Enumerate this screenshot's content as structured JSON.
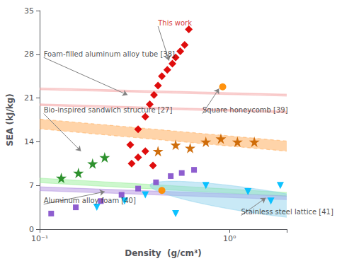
{
  "chart_data": {
    "type": "scatter",
    "xlabel": "Density  (g/cm³)",
    "ylabel": "SEA (kJ/kg)",
    "log": "x",
    "grid": false,
    "xlim": [
      0.1,
      2.0
    ],
    "ylim": [
      0,
      35
    ],
    "xticks": [
      {
        "value": 0.1,
        "label": "10⁻¹"
      },
      {
        "value": 1,
        "label": "10⁰"
      }
    ],
    "yticks": [
      0,
      7,
      14,
      21,
      28,
      35
    ],
    "series": [
      {
        "color": "#dd0000",
        "marker": "diamond",
        "x": [
          0.3,
          0.33,
          0.36,
          0.38,
          0.4,
          0.42,
          0.44,
          0.47,
          0.5,
          0.52,
          0.55,
          0.58,
          0.61
        ],
        "y": [
          13.5,
          16.0,
          18.0,
          20.0,
          21.5,
          23.0,
          24.5,
          25.5,
          26.5,
          27.5,
          28.5,
          29.5,
          32.0
        ]
      },
      {
        "color": "#dd0000",
        "marker": "diamond",
        "x": [
          0.305,
          0.33,
          0.36,
          0.395
        ],
        "y": [
          10.5,
          11.5,
          12.5,
          10.2
        ]
      },
      {
        "color": "#228B22",
        "marker": "star",
        "x": [
          0.13,
          0.16,
          0.19,
          0.22
        ],
        "y": [
          8.2,
          9.0,
          10.5,
          11.5
        ]
      },
      {
        "color": "#cc6600",
        "marker": "star",
        "x": [
          0.42,
          0.52,
          0.62,
          0.75,
          0.9,
          1.1,
          1.35
        ],
        "y": [
          12.5,
          13.5,
          13.0,
          14.0,
          14.5,
          14.0,
          14.0
        ]
      },
      {
        "color": "#8855cc",
        "marker": "square",
        "x": [
          0.115,
          0.155,
          0.21,
          0.27,
          0.33,
          0.41,
          0.49,
          0.56,
          0.65
        ],
        "y": [
          2.5,
          3.5,
          4.5,
          5.5,
          6.5,
          7.5,
          8.5,
          9.0,
          9.5
        ]
      },
      {
        "color": "#00BFFF",
        "marker": "triangle_down",
        "x": [
          0.2,
          0.28,
          0.36,
          0.52,
          0.75,
          1.25,
          1.65,
          1.85
        ],
        "y": [
          3.5,
          4.5,
          5.5,
          2.5,
          7.0,
          6.0,
          4.5,
          7.0
        ]
      },
      {
        "color": "#FF8C00",
        "marker": "circle",
        "x": [
          0.44,
          0.92
        ],
        "y": [
          6.2,
          22.8
        ]
      }
    ],
    "regions": [
      {
        "cx_log": -0.385,
        "cy": 22.0,
        "rx_log": 0.115,
        "ry": 10.5,
        "angle_deg": 52,
        "color": "#f5a0a0",
        "line_style": "solid"
      },
      {
        "cx_log": -0.52,
        "cy": 19.5,
        "rx_log": 0.1,
        "ry": 9.0,
        "angle_deg": 48,
        "color": "#f5a0a0",
        "line_style": "solid"
      },
      {
        "cx_log": -0.82,
        "cy": 7.5,
        "rx_log": 0.18,
        "ry": 3.8,
        "angle_deg": 30,
        "color": "#90EE90",
        "line_style": "solid"
      },
      {
        "cx_log": -0.14,
        "cy": 14.5,
        "rx_log": 0.28,
        "ry": 9.5,
        "angle_deg": 20,
        "color": "#FFA040",
        "line_style": "dashed"
      },
      {
        "cx_log": -0.57,
        "cy": 6.0,
        "rx_log": 0.2,
        "ry": 5.5,
        "angle_deg": 42,
        "color": "#aa88dd",
        "line_style": "solid"
      },
      {
        "cx_log": 0.14,
        "cy": 4.5,
        "rx_log": 0.34,
        "ry": 3.2,
        "angle_deg": 8,
        "color": "#87CEEB",
        "line_style": "solid"
      }
    ],
    "annotations": [
      {
        "text": "This work",
        "tx": 0.42,
        "ty": 32.5,
        "ax": 0.48,
        "ay": 27.0,
        "color": "#cc0000",
        "arrow_color": "gray"
      },
      {
        "text": "Foam-filled aluminum alloy tube [38]",
        "tx": 0.105,
        "ty": 27.5,
        "ax": 0.29,
        "ay": 21.5,
        "color": "#222222",
        "arrow_color": "gray"
      },
      {
        "text": "Bio-inspired sandwich structure [27]",
        "tx": 0.105,
        "ty": 18.5,
        "ax": 0.165,
        "ay": 12.5,
        "color": "#222222",
        "arrow_color": "gray"
      },
      {
        "text": "Square honeycomb [39]",
        "tx": 0.72,
        "ty": 18.5,
        "ax": 0.88,
        "ay": 22.5,
        "color": "#222222",
        "arrow_color": "gray"
      },
      {
        "text": "Aluminum alloy foam [40]",
        "tx": 0.105,
        "ty": 4.0,
        "ax": 0.22,
        "ay": 6.0,
        "color": "#222222",
        "arrow_color": "gray"
      },
      {
        "text": "Stainless steel lattice [41]",
        "tx": 1.15,
        "ty": 2.2,
        "ax": 1.55,
        "ay": 5.0,
        "color": "#222222",
        "arrow_color": "gray"
      }
    ]
  }
}
